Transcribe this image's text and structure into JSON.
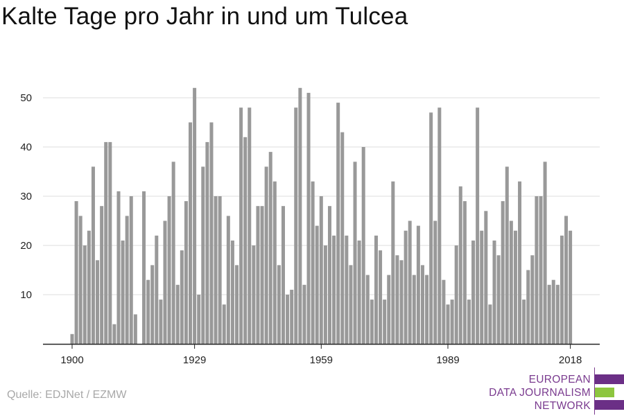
{
  "title": "Kalte Tage pro Jahr in und um Tulcea",
  "source": "Quelle: EDJNet / EZMW",
  "logo": {
    "lines": [
      "EUROPEAN",
      "DATA JOURNALISM",
      "NETWORK"
    ],
    "colors": {
      "purple": "#6b2f86",
      "green": "#8dc63f"
    }
  },
  "chart_data": {
    "type": "bar",
    "x_start": 1900,
    "values": [
      2,
      29,
      26,
      20,
      23,
      36,
      17,
      28,
      41,
      41,
      4,
      31,
      21,
      26,
      30,
      6,
      0,
      31,
      13,
      16,
      22,
      9,
      25,
      30,
      37,
      12,
      19,
      29,
      45,
      52,
      10,
      36,
      41,
      45,
      30,
      30,
      8,
      26,
      21,
      16,
      48,
      42,
      48,
      20,
      28,
      28,
      36,
      39,
      33,
      16,
      28,
      10,
      11,
      48,
      52,
      12,
      51,
      33,
      24,
      30,
      20,
      28,
      22,
      49,
      43,
      22,
      16,
      37,
      21,
      40,
      14,
      9,
      22,
      19,
      9,
      14,
      33,
      18,
      17,
      23,
      25,
      14,
      24,
      16,
      14,
      47,
      25,
      48,
      13,
      8,
      9,
      20,
      32,
      29,
      9,
      21,
      48,
      23,
      27,
      8,
      21,
      18,
      29,
      36,
      25,
      23,
      33,
      9,
      15,
      18,
      30,
      30,
      37,
      12,
      13,
      12,
      22,
      26,
      23
    ],
    "x_ticks": [
      "1900",
      "1929",
      "1959",
      "1989",
      "2018"
    ],
    "y_ticks": [
      "10",
      "20",
      "30",
      "40",
      "50"
    ],
    "ylim": [
      0,
      55
    ],
    "bar_color": "#999999",
    "grid": true
  }
}
